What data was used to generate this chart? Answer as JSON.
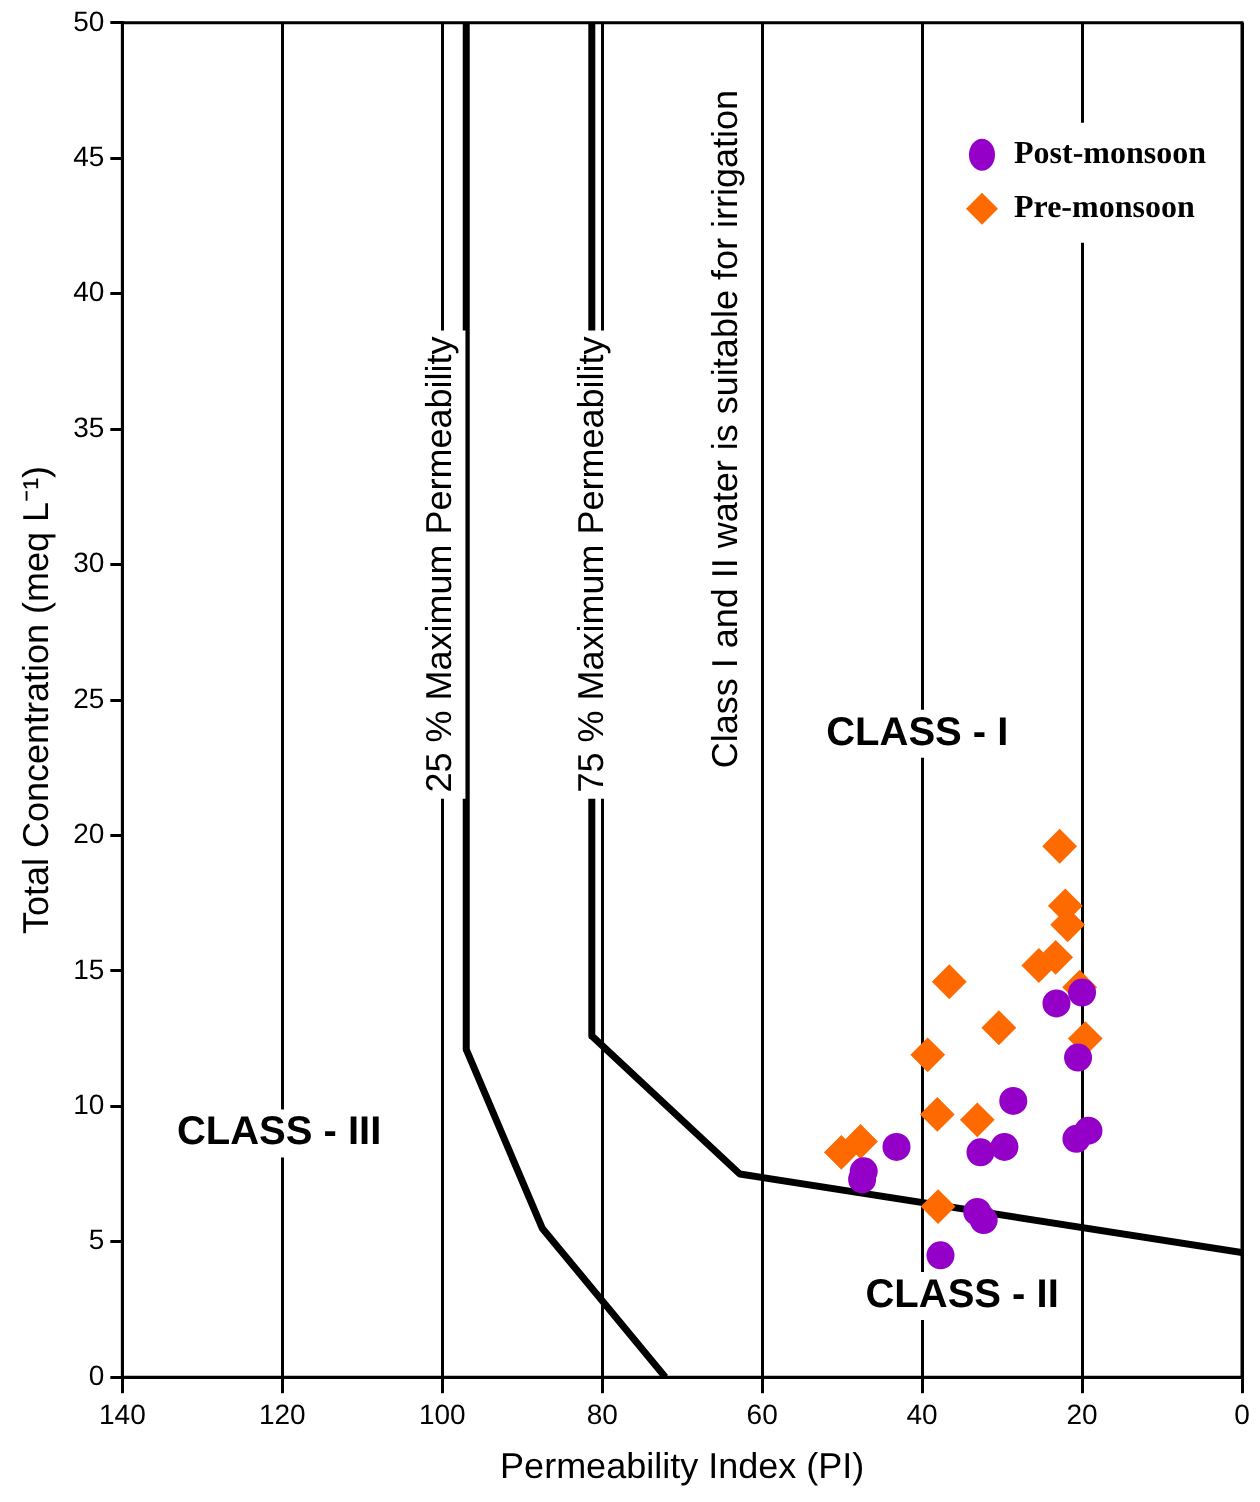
{
  "chart_data": {
    "type": "scatter",
    "xlabel": "Permeability Index (PI)",
    "ylabel": "Total Concentration (meq L⁻¹)",
    "xlim": [
      140,
      0
    ],
    "xticks": [
      140,
      120,
      100,
      80,
      60,
      40,
      20,
      0
    ],
    "ylim": [
      0,
      50
    ],
    "yticks": [
      0,
      5,
      10,
      15,
      20,
      25,
      30,
      35,
      40,
      45,
      50
    ],
    "grid": "x",
    "legend": "top right",
    "series": [
      {
        "name": "Post-monsoon",
        "color": "#9400c8",
        "marker": "circle",
        "x": [
          23.2,
          20.0,
          20.5,
          28.6,
          43.2,
          29.7,
          32.7,
          47.3,
          47.5,
          19.2,
          20.7,
          33.1,
          32.3,
          37.7
        ],
        "values": [
          13.8,
          14.2,
          11.8,
          10.2,
          8.5,
          8.5,
          8.3,
          7.6,
          7.3,
          9.1,
          8.8,
          6.1,
          5.8,
          4.5
        ]
      },
      {
        "name": "Pre-monsoon",
        "color": "#ff6a00",
        "marker": "diamond",
        "x": [
          22.8,
          22.1,
          21.8,
          23.3,
          25.4,
          20.3,
          36.6,
          30.4,
          19.6,
          39.3,
          38.1,
          33.1,
          47.7,
          50.1,
          38.0
        ],
        "values": [
          19.6,
          17.4,
          16.7,
          15.5,
          15.2,
          14.4,
          14.6,
          12.9,
          12.5,
          11.9,
          9.7,
          9.5,
          8.7,
          8.3,
          6.3
        ]
      },
      {
        "type": "line",
        "color": "#000000",
        "marker": "none",
        "x": [
          97.0,
          97.0,
          87.5,
          72.1
        ],
        "values": [
          50,
          12.1,
          5.5,
          0
        ]
      },
      {
        "type": "line",
        "color": "#000000",
        "marker": "none",
        "x": [
          81.3,
          81.3,
          62.8,
          0
        ],
        "values": [
          50,
          12.6,
          7.5,
          4.6
        ]
      }
    ],
    "annotations": [
      "25 % Maximum Permeability",
      "75 % Maximum Permeability",
      "Class I and II water is suitable for irrigation",
      "CLASS - I",
      "CLASS - III",
      "CLASS - II"
    ]
  }
}
